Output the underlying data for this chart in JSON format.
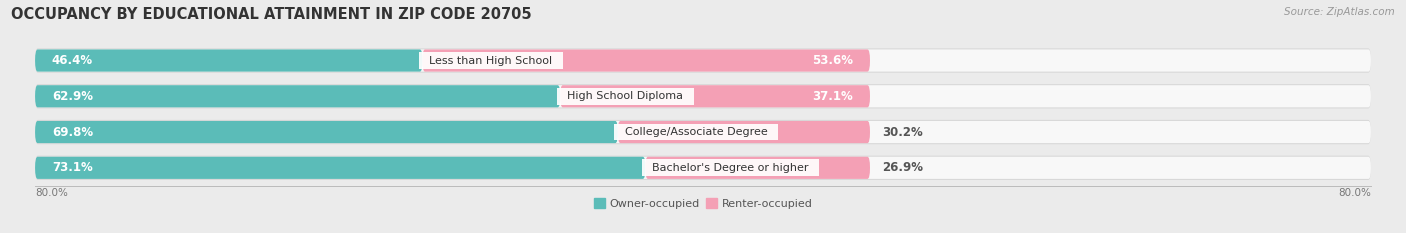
{
  "title": "OCCUPANCY BY EDUCATIONAL ATTAINMENT IN ZIP CODE 20705",
  "source": "Source: ZipAtlas.com",
  "categories": [
    "Less than High School",
    "High School Diploma",
    "College/Associate Degree",
    "Bachelor's Degree or higher"
  ],
  "owner_values": [
    46.4,
    62.9,
    69.8,
    73.1
  ],
  "renter_values": [
    53.6,
    37.1,
    30.2,
    26.9
  ],
  "owner_color": "#5bbcb8",
  "renter_color": "#f4a0b5",
  "background_color": "#ebebeb",
  "bar_background": "#f8f8f8",
  "bar_shadow": "#d8d8d8",
  "xlim_left": -80.0,
  "xlim_right": 80.0,
  "x_left_label": "80.0%",
  "x_right_label": "80.0%",
  "legend_owner": "Owner-occupied",
  "legend_renter": "Renter-occupied",
  "title_fontsize": 10.5,
  "source_fontsize": 7.5,
  "bar_height": 0.62,
  "label_fontsize": 8.5
}
